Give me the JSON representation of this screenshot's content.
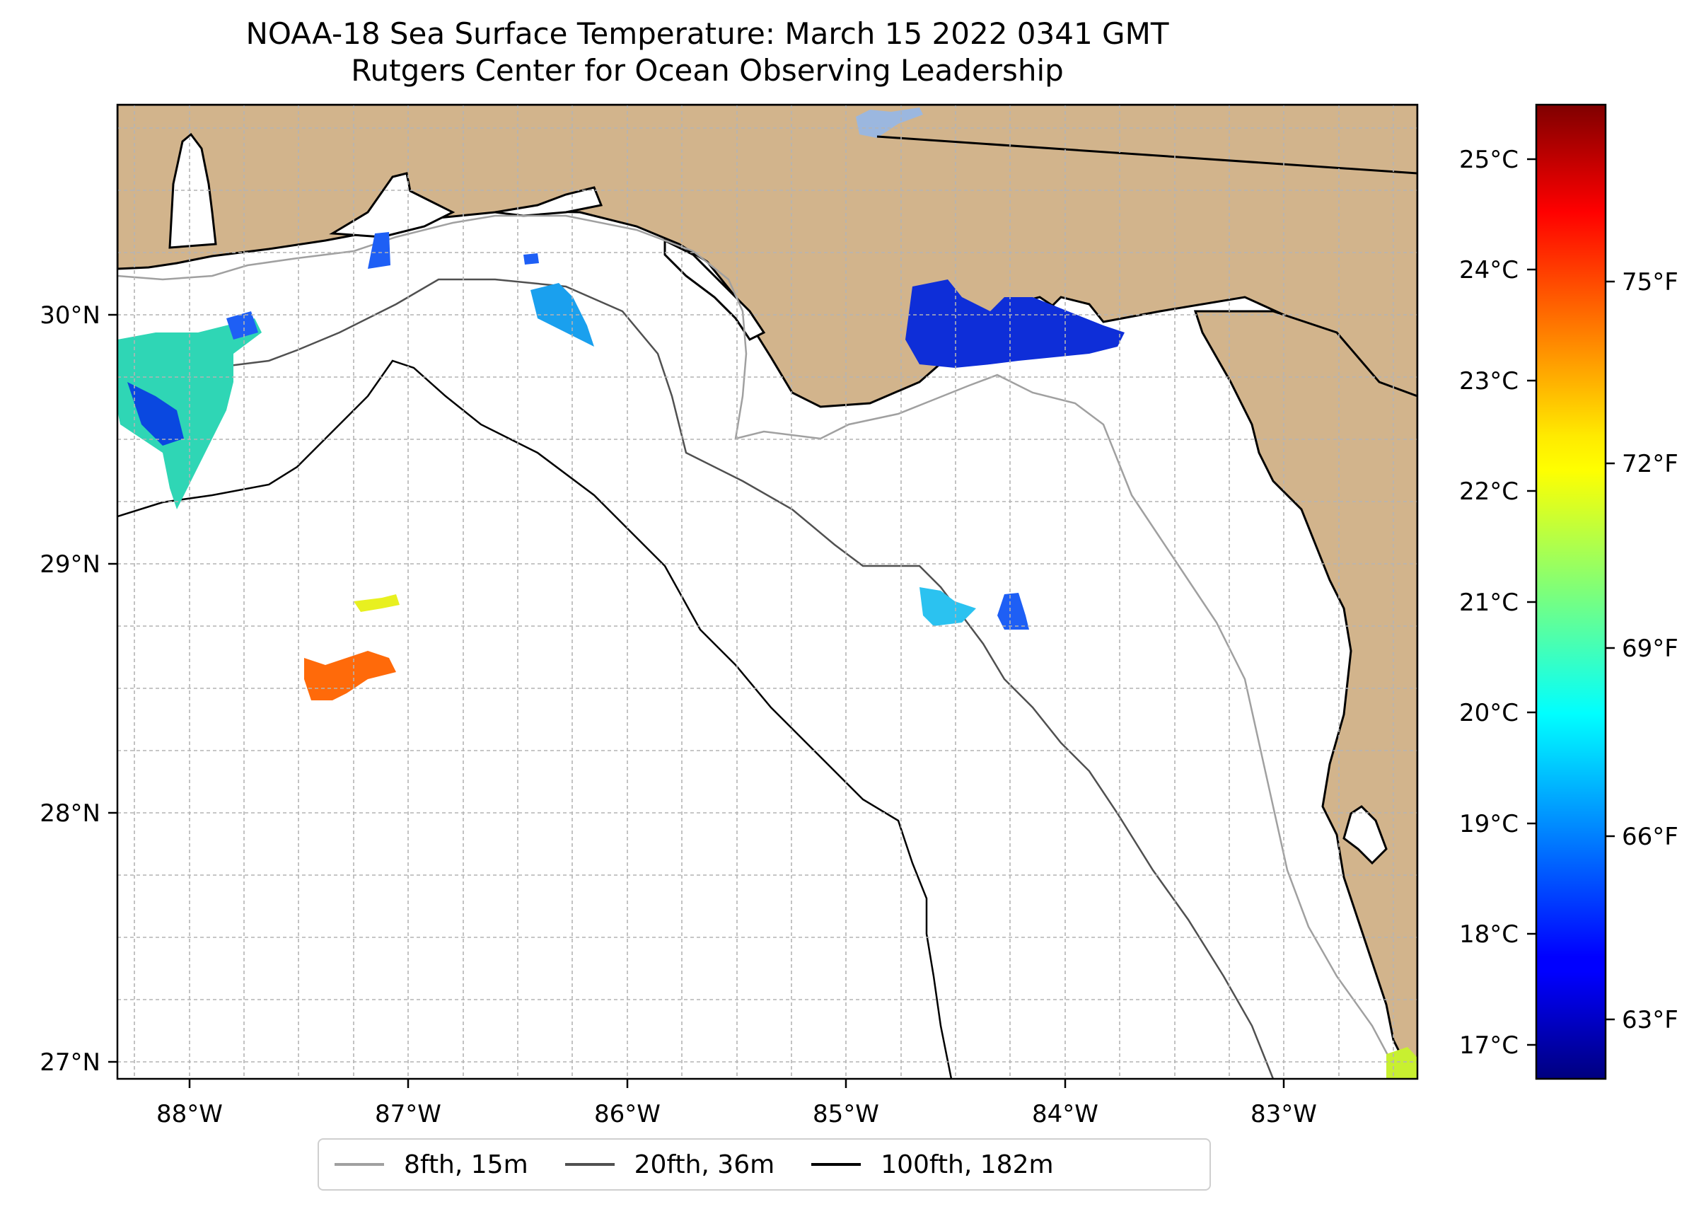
{
  "title": {
    "line1": "NOAA-18 Sea Surface Temperature: March 15 2022 0341 GMT",
    "line2": "Rutgers Center for Ocean Observing Leadership"
  },
  "map": {
    "lon_labels": [
      "88°W",
      "87°W",
      "86°W",
      "85°W",
      "84°W",
      "83°W"
    ],
    "lat_labels": [
      "30°N",
      "29°N",
      "28°N",
      "27°N"
    ],
    "lon_range": [
      -88.33,
      -82.4
    ],
    "lat_range": [
      26.94,
      30.85
    ],
    "colors": {
      "land": "#D2B48C",
      "water": "#ffffff",
      "lake": "#9bb7df",
      "grid": "#b4b4b4",
      "coast": "#000000"
    }
  },
  "colorbar": {
    "celsius_labels": [
      "25°C",
      "24°C",
      "23°C",
      "22°C",
      "21°C",
      "20°C",
      "19°C",
      "18°C",
      "17°C"
    ],
    "fahrenheit_labels": [
      "75°F",
      "72°F",
      "69°F",
      "66°F",
      "63°F"
    ],
    "range_c": [
      16.7,
      25.5
    ],
    "colormap": "jet"
  },
  "legend": {
    "items": [
      {
        "label": "8fth, 15m",
        "color": "#a0a0a0"
      },
      {
        "label": "20fth, 36m",
        "color": "#505050"
      },
      {
        "label": "100fth, 182m",
        "color": "#000000"
      }
    ]
  }
}
